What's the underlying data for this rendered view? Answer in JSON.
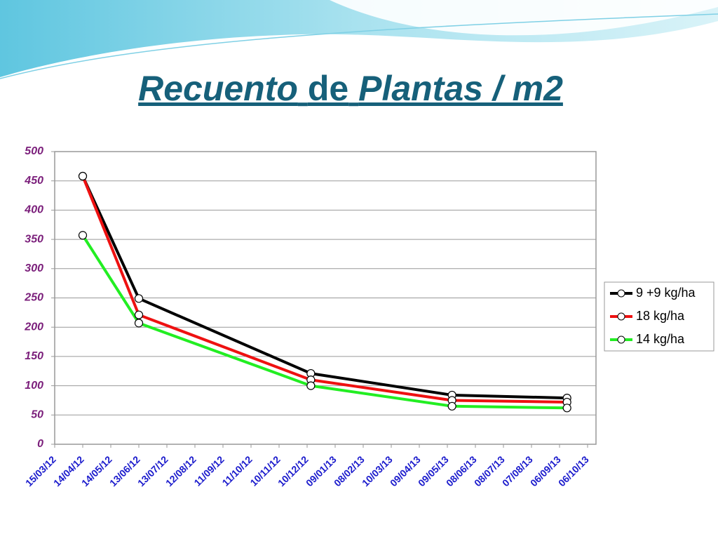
{
  "chart_data": {
    "type": "line",
    "title_parts": [
      "Recuento",
      "de",
      "Plantas / m2"
    ],
    "x": [
      "14/04/12",
      "13/06/12",
      "14/12/12",
      "14/05/13",
      "14/09/13"
    ],
    "xlim": [
      "15/03/12",
      "15/10/13"
    ],
    "xticks": [
      "15/03/12",
      "14/04/12",
      "14/05/12",
      "13/06/12",
      "13/07/12",
      "12/08/12",
      "11/09/12",
      "11/10/12",
      "10/11/12",
      "10/12/12",
      "09/01/13",
      "08/02/13",
      "10/03/13",
      "09/04/13",
      "09/05/13",
      "08/06/13",
      "08/07/13",
      "07/08/13",
      "06/09/13",
      "06/10/13"
    ],
    "ylim": [
      0,
      500
    ],
    "yticks": [
      0,
      50,
      100,
      150,
      200,
      250,
      300,
      350,
      400,
      450,
      500
    ],
    "grid": true,
    "legend": "right",
    "series": [
      {
        "name": "9 +9 kg/ha",
        "color": "#000000",
        "values": [
          458,
          249,
          121,
          84,
          79
        ]
      },
      {
        "name": "18 kg/ha",
        "color": "#ee1111",
        "values": [
          458,
          221,
          110,
          75,
          72
        ]
      },
      {
        "name": "14 kg/ha",
        "color": "#22ee22",
        "values": [
          357,
          207,
          100,
          65,
          62
        ]
      }
    ]
  }
}
